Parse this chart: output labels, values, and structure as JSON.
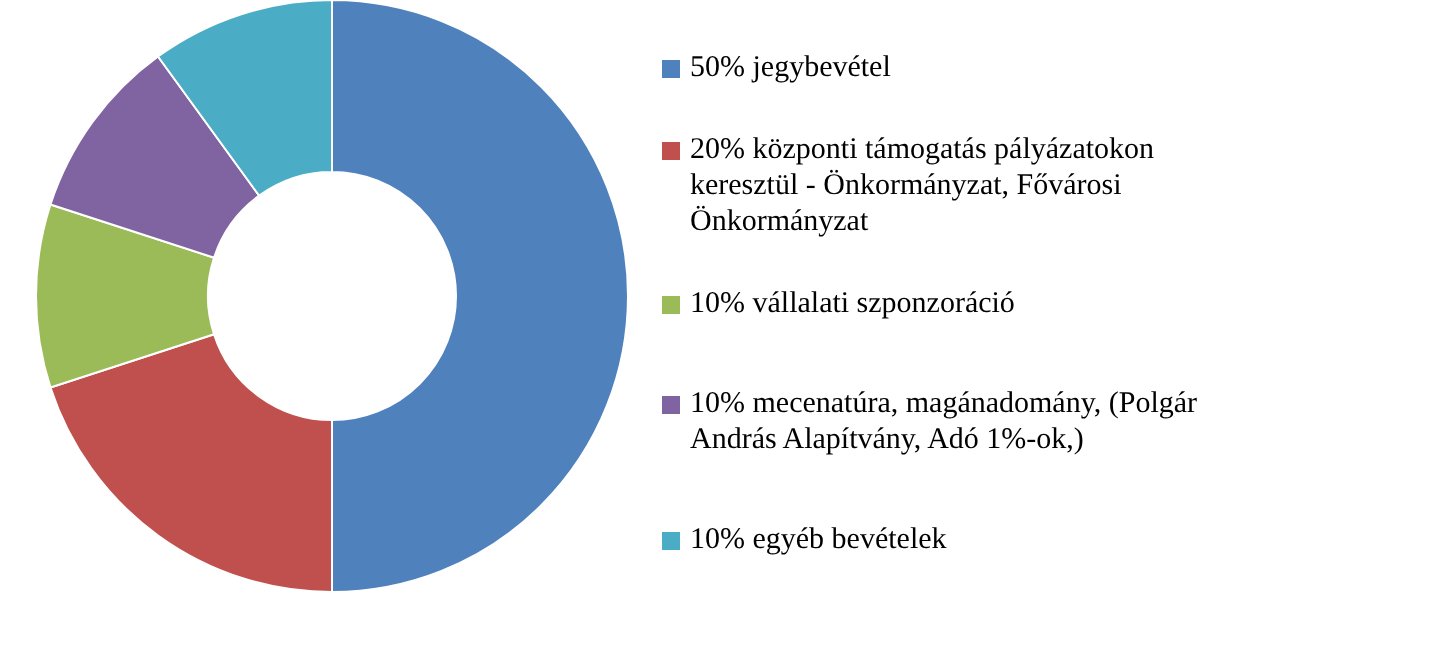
{
  "chart_data": {
    "type": "donut",
    "categories": [
      "50% jegybevétel",
      "20% központi támogatás pályázatokon keresztül - Önkormányzat, Fővárosi Önkormányzat",
      "10% vállalati szponzoráció",
      "10% mecenatúra, magánadomány, (Polgár András Alapítvány, Adó 1%-ok,)",
      "10% egyéb bevételek"
    ],
    "values": [
      50,
      20,
      10,
      10,
      10
    ],
    "colors": [
      "#4f81bd",
      "#c0504d",
      "#9bbb59",
      "#8064a2",
      "#4bacc6"
    ],
    "legend": "right"
  }
}
